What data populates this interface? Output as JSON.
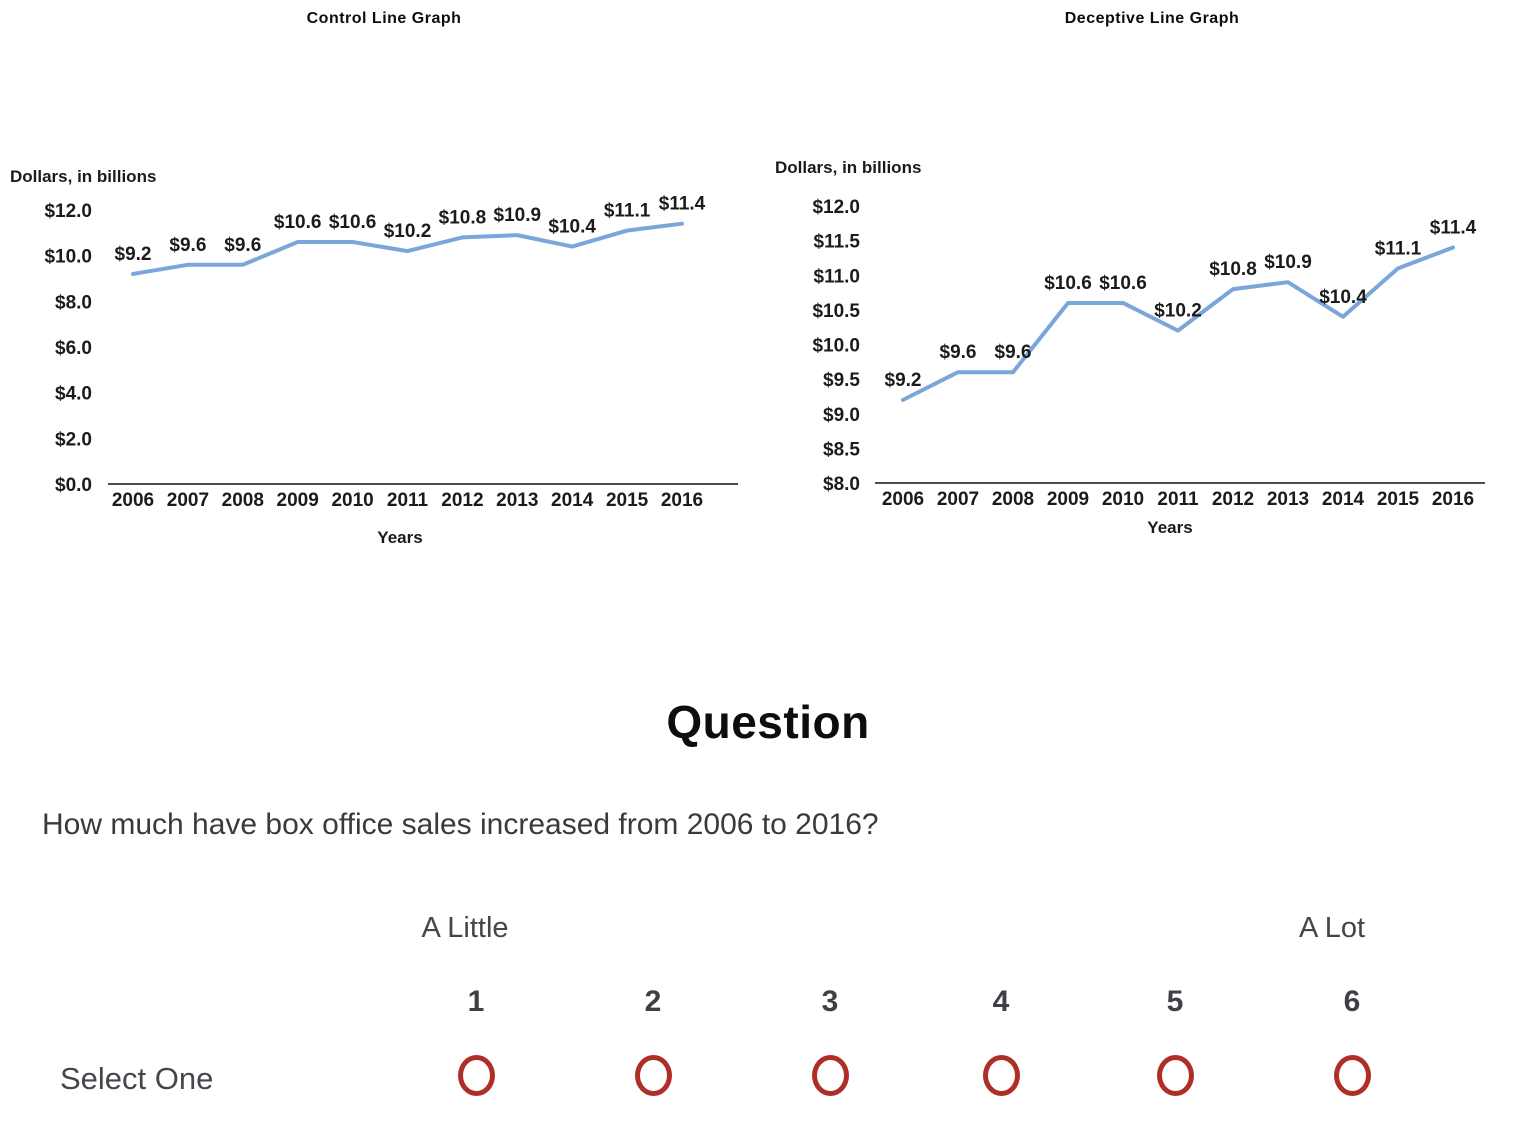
{
  "chart_data": [
    {
      "type": "line",
      "title": "Control Line Graph",
      "x": [
        "2006",
        "2007",
        "2008",
        "2009",
        "2010",
        "2011",
        "2012",
        "2013",
        "2014",
        "2015",
        "2016"
      ],
      "values": [
        9.2,
        9.6,
        9.6,
        10.6,
        10.6,
        10.2,
        10.8,
        10.9,
        10.4,
        11.1,
        11.4
      ],
      "point_labels": [
        "$9.2",
        "$9.6",
        "$9.6",
        "$10.6",
        "$10.6",
        "$10.2",
        "$10.8",
        "$10.9",
        "$10.4",
        "$11.1",
        "$11.4"
      ],
      "xlabel": "Years",
      "ylabel": "Dollars, in billions",
      "ylim": [
        0,
        12
      ],
      "yticks": [
        12,
        10,
        8,
        6,
        4,
        2,
        0
      ],
      "ytick_labels": [
        "$12.0",
        "$10.0",
        "$8.0",
        "$6.0",
        "$4.0",
        "$2.0",
        "$0.0"
      ],
      "grid": false,
      "legend": false,
      "line_color": "#7aa6d9"
    },
    {
      "type": "line",
      "title": "Deceptive Line Graph",
      "x": [
        "2006",
        "2007",
        "2008",
        "2009",
        "2010",
        "2011",
        "2012",
        "2013",
        "2014",
        "2015",
        "2016"
      ],
      "values": [
        9.2,
        9.6,
        9.6,
        10.6,
        10.6,
        10.2,
        10.8,
        10.9,
        10.4,
        11.1,
        11.4
      ],
      "point_labels": [
        "$9.2",
        "$9.6",
        "$9.6",
        "$10.6",
        "$10.6",
        "$10.2",
        "$10.8",
        "$10.9",
        "$10.4",
        "$11.1",
        "$11.4"
      ],
      "xlabel": "Years",
      "ylabel": "Dollars, in billions",
      "ylim": [
        8,
        12
      ],
      "yticks": [
        12,
        11.5,
        11,
        10.5,
        10,
        9.5,
        9,
        8.5,
        8
      ],
      "ytick_labels": [
        "$12.0",
        "$11.5",
        "$11.0",
        "$10.5",
        "$10.0",
        "$9.5",
        "$9.0",
        "$8.5",
        "$8.0"
      ],
      "grid": false,
      "legend": false,
      "line_color": "#7aa6d9"
    }
  ],
  "question": {
    "heading": "Question",
    "text": "How much have box office sales increased from 2006 to 2016?",
    "scale": {
      "left_anchor": "A Little",
      "right_anchor": "A Lot",
      "select_label": "Select One",
      "options": [
        "1",
        "2",
        "3",
        "4",
        "5",
        "6"
      ],
      "radio_color": "#ae2f27"
    }
  },
  "colors": {
    "line": "#7aa6d9",
    "axis": "#4d4d4d",
    "chart_text": "#1b1b1b",
    "radio_ring": "#ae2f27"
  }
}
